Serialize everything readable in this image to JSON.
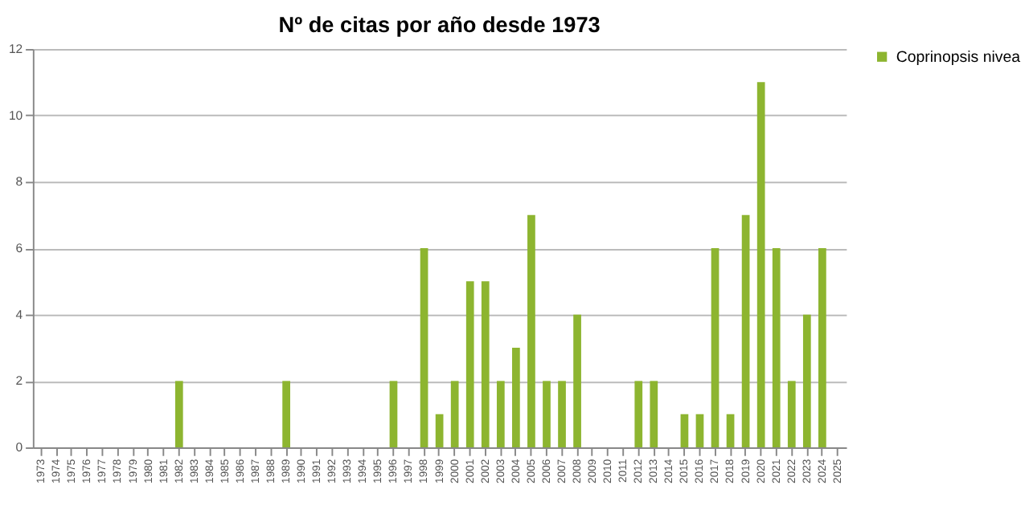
{
  "chart_data": {
    "type": "bar",
    "title": "Nº de citas por año desde 1973",
    "categories": [
      "1973",
      "1974",
      "1975",
      "1976",
      "1977",
      "1978",
      "1979",
      "1980",
      "1981",
      "1982",
      "1983",
      "1984",
      "1985",
      "1986",
      "1987",
      "1988",
      "1989",
      "1990",
      "1991",
      "1992",
      "1993",
      "1994",
      "1995",
      "1996",
      "1997",
      "1998",
      "1999",
      "2000",
      "2001",
      "2002",
      "2003",
      "2004",
      "2005",
      "2006",
      "2007",
      "2008",
      "2009",
      "2010",
      "2011",
      "2012",
      "2013",
      "2014",
      "2015",
      "2016",
      "2017",
      "2018",
      "2019",
      "2020",
      "2021",
      "2022",
      "2023",
      "2024",
      "2025"
    ],
    "series": [
      {
        "name": "Coprinopsis nivea",
        "color": "#8db530",
        "values": [
          0,
          0,
          0,
          0,
          0,
          0,
          0,
          0,
          0,
          2,
          0,
          0,
          0,
          0,
          0,
          0,
          2,
          0,
          0,
          0,
          0,
          0,
          0,
          2,
          0,
          6,
          1,
          2,
          5,
          5,
          2,
          3,
          7,
          2,
          2,
          4,
          0,
          0,
          0,
          2,
          2,
          0,
          1,
          1,
          6,
          1,
          7,
          11,
          6,
          2,
          4,
          6,
          0
        ]
      }
    ],
    "ylim": [
      0,
      12
    ],
    "yticks": [
      0,
      2,
      4,
      6,
      8,
      10,
      12
    ],
    "grid": "y",
    "legend": "right"
  }
}
